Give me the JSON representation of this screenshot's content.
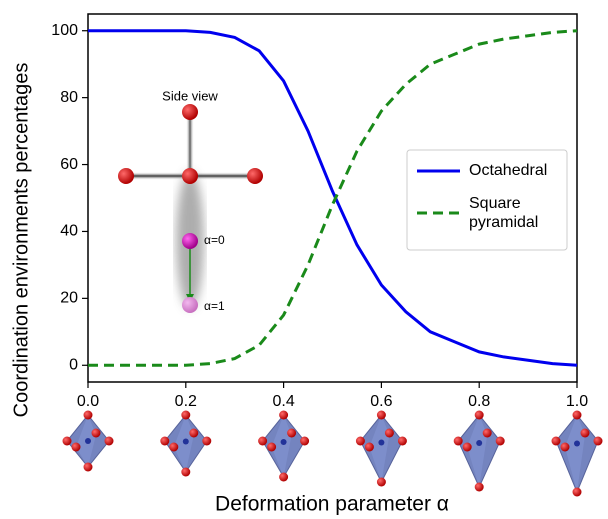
{
  "chart_data": {
    "type": "line",
    "xlabel": "Deformation parameter α",
    "ylabel": "Coordination environments percentages",
    "x": [
      0,
      0.05,
      0.1,
      0.15,
      0.2,
      0.25,
      0.3,
      0.35,
      0.4,
      0.45,
      0.5,
      0.55,
      0.6,
      0.65,
      0.7,
      0.75,
      0.8,
      0.85,
      0.9,
      0.95,
      1
    ],
    "series": [
      {
        "name": "Octahedral",
        "color": "#0000ee",
        "dash": false,
        "values": [
          100,
          100,
          100,
          100,
          100,
          99.5,
          98,
          94,
          85,
          70,
          52,
          36,
          24,
          16,
          10,
          7,
          4,
          2.5,
          1.5,
          0.5,
          0
        ]
      },
      {
        "name": "Square pyramidal",
        "color": "#1a8a1a",
        "dash": true,
        "values": [
          0,
          0,
          0,
          0,
          0,
          0.5,
          2,
          6,
          15,
          30,
          48,
          64,
          76,
          84,
          90,
          93,
          96,
          97.5,
          98.5,
          99.5,
          100
        ]
      }
    ],
    "xlim": [
      0,
      1
    ],
    "xticks": [
      {
        "value": 0,
        "label": "0.0"
      },
      {
        "value": 0.2,
        "label": "0.2"
      },
      {
        "value": 0.4,
        "label": "0.4"
      },
      {
        "value": 0.6,
        "label": "0.6"
      },
      {
        "value": 0.8,
        "label": "0.8"
      },
      {
        "value": 1,
        "label": "1.0"
      }
    ],
    "ylim": [
      -5,
      105
    ],
    "yticks": [
      0,
      20,
      40,
      60,
      80,
      100
    ],
    "legend": "right",
    "annotations": [
      "Side view",
      "α=0",
      "α=1"
    ]
  }
}
